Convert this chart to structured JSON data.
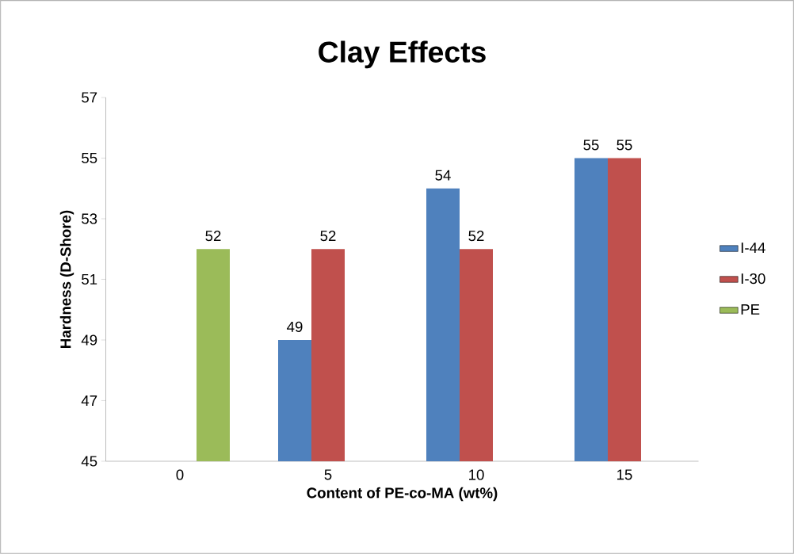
{
  "chart_data": {
    "type": "bar",
    "title": "Clay Effects",
    "xlabel": "Content of PE-co-MA (wt%)",
    "ylabel": "Hardness (D-Shore)",
    "categories": [
      "0",
      "5",
      "10",
      "15"
    ],
    "series": [
      {
        "name": "I-44",
        "color": "#4f81bd",
        "values": [
          null,
          49,
          54,
          55
        ]
      },
      {
        "name": "I-30",
        "color": "#c0504d",
        "values": [
          null,
          52,
          52,
          55
        ]
      },
      {
        "name": "PE",
        "color": "#9bbb59",
        "values": [
          52,
          null,
          null,
          null
        ]
      }
    ],
    "ylim": [
      45,
      57
    ],
    "yticks": [
      45,
      47,
      49,
      51,
      53,
      55,
      57
    ],
    "data_labels": true,
    "legend": "right",
    "grid": false
  }
}
